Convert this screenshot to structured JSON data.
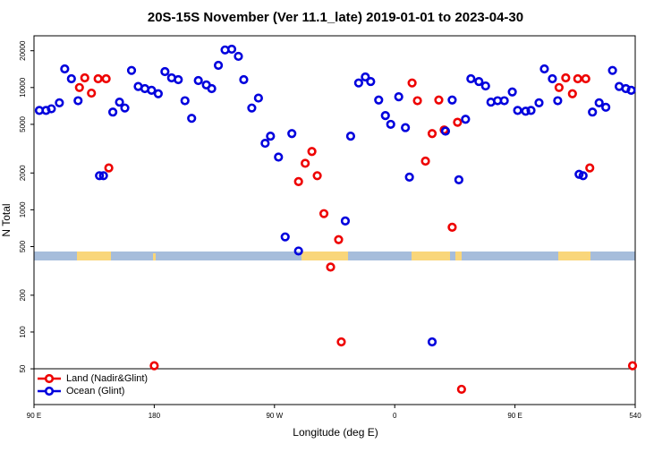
{
  "chart_data": {
    "type": "scatter",
    "title": "20S-15S November (Ver 11.1_late)   2019-01-01 to 2023-04-30",
    "xlabel": "Longitude (deg E)",
    "ylabel": "N Total",
    "log_y": true,
    "legend": "lower left",
    "xlim": [
      90,
      540
    ],
    "xticks": [
      {
        "value": 90,
        "label": "90 E"
      },
      180,
      {
        "value": 270,
        "label": "90 W"
      },
      {
        "value": 360,
        "label": "0"
      },
      {
        "value": 450,
        "label": "90 E"
      },
      540
    ],
    "ylim": [
      25.5,
      26500
    ],
    "yticks": [
      50,
      100,
      200,
      500,
      1000,
      2000,
      5000,
      10000,
      20000
    ],
    "series": [
      {
        "name": "Land (Nadir&Glint)",
        "color": "#ee0000",
        "x": [
          180,
          124,
          128,
          133,
          138,
          144,
          146,
          288,
          293,
          298,
          302,
          307,
          312,
          318,
          320,
          373,
          377,
          383,
          388,
          393,
          397,
          403,
          407,
          410,
          483,
          488,
          493,
          497,
          503,
          506,
          538
        ],
        "values": [
          53,
          10000,
          12000,
          9000,
          11800,
          11800,
          2200,
          1700,
          2400,
          3000,
          1900,
          930,
          340,
          570,
          83,
          10900,
          7800,
          2500,
          4200,
          7900,
          4500,
          720,
          5200,
          34,
          10000,
          12000,
          8900,
          11800,
          11800,
          2200,
          53
        ]
      },
      {
        "name": "Ocean (Glint)",
        "color": "#0000dd",
        "x": [
          94,
          99,
          103,
          109,
          113,
          118,
          123,
          139,
          142,
          149,
          154,
          158,
          163,
          168,
          173,
          178,
          183,
          188,
          193,
          198,
          203,
          208,
          213,
          219,
          223,
          228,
          233,
          238,
          243,
          247,
          253,
          258,
          263,
          267,
          273,
          278,
          283,
          288,
          323,
          327,
          333,
          338,
          342,
          348,
          353,
          357,
          363,
          368,
          371,
          388,
          398,
          403,
          408,
          413,
          417,
          423,
          428,
          432,
          437,
          442,
          448,
          452,
          458,
          462,
          468,
          472,
          478,
          482,
          498,
          501,
          508,
          513,
          518,
          523,
          528,
          533,
          537
        ],
        "values": [
          6500,
          6500,
          6700,
          7500,
          14200,
          11800,
          7800,
          1900,
          1900,
          6300,
          7600,
          6800,
          13800,
          10200,
          9800,
          9500,
          8900,
          13500,
          12000,
          11600,
          7800,
          5600,
          11400,
          10500,
          9800,
          15200,
          20300,
          20600,
          18000,
          11600,
          6800,
          8200,
          3500,
          4000,
          2700,
          600,
          4200,
          460,
          810,
          4000,
          10900,
          12200,
          11200,
          7900,
          5900,
          5000,
          8400,
          4700,
          1850,
          83,
          4400,
          7900,
          1760,
          5500,
          11800,
          11200,
          10300,
          7600,
          7800,
          7800,
          9200,
          6500,
          6400,
          6500,
          7500,
          14200,
          11800,
          7800,
          1950,
          1900,
          6300,
          7500,
          6900,
          13800,
          10200,
          9800,
          9500
        ]
      }
    ]
  }
}
